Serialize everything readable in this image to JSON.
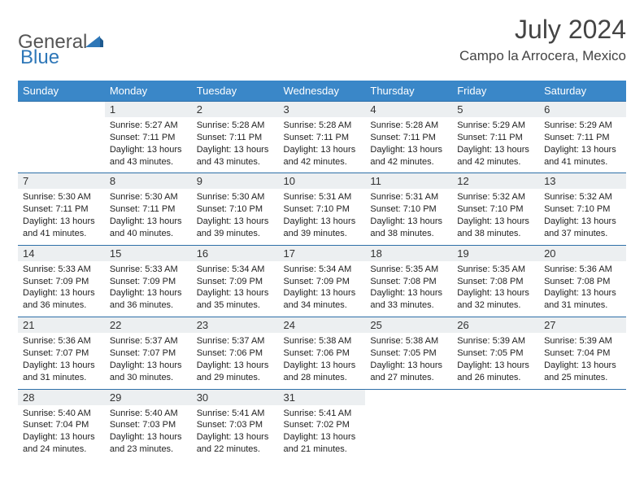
{
  "logo": {
    "text1": "General",
    "text2": "Blue"
  },
  "title": "July 2024",
  "location": "Campo la Arrocera, Mexico",
  "colors": {
    "header_bg": "#3a87c8",
    "header_text": "#ffffff",
    "daynum_bg": "#eceff1",
    "border": "#2e6fa8",
    "logo_blue": "#2e77b8",
    "logo_gray": "#555555",
    "body_text": "#222222"
  },
  "layout": {
    "columns": 7,
    "weeks": 5,
    "day_header_fontsize": 13,
    "title_fontsize": 32,
    "location_fontsize": 17,
    "cell_fontsize": 11
  },
  "days_of_week": [
    "Sunday",
    "Monday",
    "Tuesday",
    "Wednesday",
    "Thursday",
    "Friday",
    "Saturday"
  ],
  "weeks": [
    [
      null,
      {
        "n": "1",
        "sunrise": "5:27 AM",
        "sunset": "7:11 PM",
        "daylight": "13 hours and 43 minutes."
      },
      {
        "n": "2",
        "sunrise": "5:28 AM",
        "sunset": "7:11 PM",
        "daylight": "13 hours and 43 minutes."
      },
      {
        "n": "3",
        "sunrise": "5:28 AM",
        "sunset": "7:11 PM",
        "daylight": "13 hours and 42 minutes."
      },
      {
        "n": "4",
        "sunrise": "5:28 AM",
        "sunset": "7:11 PM",
        "daylight": "13 hours and 42 minutes."
      },
      {
        "n": "5",
        "sunrise": "5:29 AM",
        "sunset": "7:11 PM",
        "daylight": "13 hours and 42 minutes."
      },
      {
        "n": "6",
        "sunrise": "5:29 AM",
        "sunset": "7:11 PM",
        "daylight": "13 hours and 41 minutes."
      }
    ],
    [
      {
        "n": "7",
        "sunrise": "5:30 AM",
        "sunset": "7:11 PM",
        "daylight": "13 hours and 41 minutes."
      },
      {
        "n": "8",
        "sunrise": "5:30 AM",
        "sunset": "7:11 PM",
        "daylight": "13 hours and 40 minutes."
      },
      {
        "n": "9",
        "sunrise": "5:30 AM",
        "sunset": "7:10 PM",
        "daylight": "13 hours and 39 minutes."
      },
      {
        "n": "10",
        "sunrise": "5:31 AM",
        "sunset": "7:10 PM",
        "daylight": "13 hours and 39 minutes."
      },
      {
        "n": "11",
        "sunrise": "5:31 AM",
        "sunset": "7:10 PM",
        "daylight": "13 hours and 38 minutes."
      },
      {
        "n": "12",
        "sunrise": "5:32 AM",
        "sunset": "7:10 PM",
        "daylight": "13 hours and 38 minutes."
      },
      {
        "n": "13",
        "sunrise": "5:32 AM",
        "sunset": "7:10 PM",
        "daylight": "13 hours and 37 minutes."
      }
    ],
    [
      {
        "n": "14",
        "sunrise": "5:33 AM",
        "sunset": "7:09 PM",
        "daylight": "13 hours and 36 minutes."
      },
      {
        "n": "15",
        "sunrise": "5:33 AM",
        "sunset": "7:09 PM",
        "daylight": "13 hours and 36 minutes."
      },
      {
        "n": "16",
        "sunrise": "5:34 AM",
        "sunset": "7:09 PM",
        "daylight": "13 hours and 35 minutes."
      },
      {
        "n": "17",
        "sunrise": "5:34 AM",
        "sunset": "7:09 PM",
        "daylight": "13 hours and 34 minutes."
      },
      {
        "n": "18",
        "sunrise": "5:35 AM",
        "sunset": "7:08 PM",
        "daylight": "13 hours and 33 minutes."
      },
      {
        "n": "19",
        "sunrise": "5:35 AM",
        "sunset": "7:08 PM",
        "daylight": "13 hours and 32 minutes."
      },
      {
        "n": "20",
        "sunrise": "5:36 AM",
        "sunset": "7:08 PM",
        "daylight": "13 hours and 31 minutes."
      }
    ],
    [
      {
        "n": "21",
        "sunrise": "5:36 AM",
        "sunset": "7:07 PM",
        "daylight": "13 hours and 31 minutes."
      },
      {
        "n": "22",
        "sunrise": "5:37 AM",
        "sunset": "7:07 PM",
        "daylight": "13 hours and 30 minutes."
      },
      {
        "n": "23",
        "sunrise": "5:37 AM",
        "sunset": "7:06 PM",
        "daylight": "13 hours and 29 minutes."
      },
      {
        "n": "24",
        "sunrise": "5:38 AM",
        "sunset": "7:06 PM",
        "daylight": "13 hours and 28 minutes."
      },
      {
        "n": "25",
        "sunrise": "5:38 AM",
        "sunset": "7:05 PM",
        "daylight": "13 hours and 27 minutes."
      },
      {
        "n": "26",
        "sunrise": "5:39 AM",
        "sunset": "7:05 PM",
        "daylight": "13 hours and 26 minutes."
      },
      {
        "n": "27",
        "sunrise": "5:39 AM",
        "sunset": "7:04 PM",
        "daylight": "13 hours and 25 minutes."
      }
    ],
    [
      {
        "n": "28",
        "sunrise": "5:40 AM",
        "sunset": "7:04 PM",
        "daylight": "13 hours and 24 minutes."
      },
      {
        "n": "29",
        "sunrise": "5:40 AM",
        "sunset": "7:03 PM",
        "daylight": "13 hours and 23 minutes."
      },
      {
        "n": "30",
        "sunrise": "5:41 AM",
        "sunset": "7:03 PM",
        "daylight": "13 hours and 22 minutes."
      },
      {
        "n": "31",
        "sunrise": "5:41 AM",
        "sunset": "7:02 PM",
        "daylight": "13 hours and 21 minutes."
      },
      null,
      null,
      null
    ]
  ],
  "labels": {
    "sunrise": "Sunrise:",
    "sunset": "Sunset:",
    "daylight": "Daylight:"
  }
}
